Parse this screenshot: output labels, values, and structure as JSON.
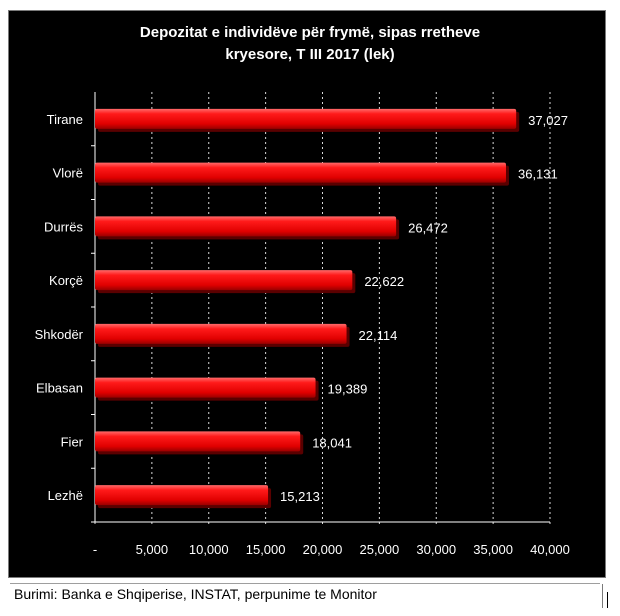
{
  "chart_data": {
    "type": "bar",
    "orientation": "horizontal",
    "title_lines": [
      "Depozitat e individëve për frymë, sipas rretheve",
      "kryesore, T III 2017 (lek)"
    ],
    "categories": [
      "Tirane",
      "Vlorë",
      "Durrës",
      "Korçë",
      "Shkodër",
      "Elbasan",
      "Fier",
      "Lezhë"
    ],
    "values": [
      37027,
      36131,
      26472,
      22622,
      22114,
      19389,
      18041,
      15213
    ],
    "value_labels": [
      "37,027",
      "36,131",
      "26,472",
      "22,622",
      "22,114",
      "19,389",
      "18,041",
      "15,213"
    ],
    "xlim": [
      0,
      40000
    ],
    "x_ticks": [
      0,
      5000,
      10000,
      15000,
      20000,
      25000,
      30000,
      35000,
      40000
    ],
    "x_tick_labels": [
      "-",
      "5,000",
      "10,000",
      "15,000",
      "20,000",
      "25,000",
      "30,000",
      "35,000",
      "40,000"
    ],
    "grid": "vertical",
    "bar_color": "#ff0000",
    "background": "#000000",
    "text_color": "#ffffff",
    "grid_color": "#ffffff"
  },
  "source": "Burimi: Banka e Shqiperise, INSTAT, perpunime te Monitor"
}
